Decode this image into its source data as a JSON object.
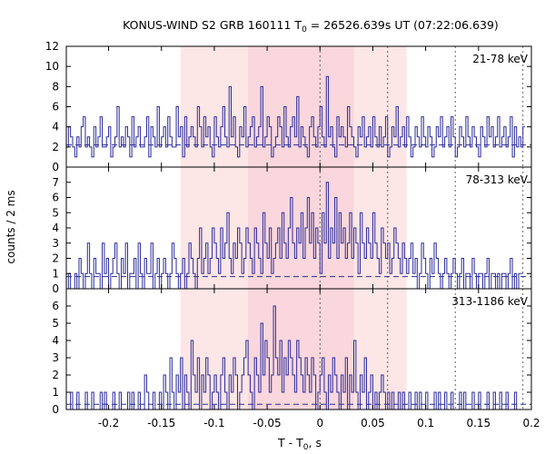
{
  "chart_data": {
    "type": "line",
    "title_prefix": "KONUS-WIND S2 GRB 160111 T",
    "title_sub": "0",
    "title_suffix": " = 26526.639s UT (07:22:06.639)",
    "ylabel": "counts / 2 ms",
    "xlabel_prefix": "T - T",
    "xlabel_sub": "0",
    "xlabel_suffix": ", s",
    "xlim": [
      -0.24,
      0.2
    ],
    "x_ticks": [
      -0.2,
      -0.15,
      -0.1,
      -0.05,
      0,
      0.05,
      0.1,
      0.15,
      0.2
    ],
    "x_tick_labels": [
      "-0.2",
      "-0.15",
      "-0.1",
      "-0.05",
      "0",
      "0.05",
      "0.1",
      "0.15",
      "0.2"
    ],
    "bin_width_s": 0.002,
    "shaded_regions": [
      {
        "x0": -0.132,
        "x1": 0.082,
        "color": "#fce6e6"
      },
      {
        "x0": -0.068,
        "x1": 0.032,
        "color": "#f9d7dc"
      }
    ],
    "dotted_lines_x": [
      0,
      0.064,
      0.128,
      0.192
    ],
    "colors": {
      "histogram": "#2b2b9c",
      "background": "#2b2b9c"
    },
    "panels": [
      {
        "label": "21-78 keV",
        "ylim": [
          0,
          12
        ],
        "y_ticks": [
          0,
          2,
          4,
          6,
          8,
          10,
          12
        ],
        "y_tick_labels": [
          "0",
          "2",
          "4",
          "6",
          "8",
          "10",
          "12"
        ],
        "background_level": 2.2,
        "counts": [
          2,
          4,
          3,
          2,
          1,
          3,
          2,
          4,
          5,
          2,
          3,
          2,
          1,
          4,
          2,
          3,
          5,
          2,
          2,
          3,
          4,
          1,
          2,
          3,
          6,
          2,
          3,
          2,
          4,
          3,
          1,
          5,
          2,
          3,
          4,
          2,
          2,
          3,
          5,
          1,
          4,
          3,
          2,
          6,
          2,
          3,
          4,
          2,
          5,
          3,
          2,
          2,
          6,
          3,
          4,
          1,
          5,
          2,
          3,
          4,
          3,
          2,
          6,
          4,
          2,
          5,
          3,
          4,
          2,
          1,
          5,
          3,
          2,
          4,
          6,
          3,
          2,
          8,
          3,
          5,
          2,
          1,
          4,
          3,
          6,
          2,
          3,
          4,
          5,
          2,
          3,
          4,
          8,
          2,
          3,
          5,
          4,
          1,
          2,
          3,
          5,
          4,
          2,
          6,
          3,
          2,
          4,
          5,
          3,
          7,
          2,
          4,
          3,
          2,
          1,
          4,
          5,
          3,
          2,
          4,
          6,
          3,
          2,
          9,
          3,
          4,
          2,
          1,
          5,
          3,
          4,
          3,
          2,
          6,
          4,
          3,
          2,
          1,
          4,
          3,
          5,
          2,
          3,
          4,
          2,
          5,
          3,
          2,
          4,
          2,
          3,
          5,
          1,
          2,
          4,
          3,
          6,
          2,
          3,
          4,
          2,
          5,
          3,
          1,
          2,
          4,
          3,
          2,
          5,
          3,
          2,
          4,
          3,
          1,
          2,
          4,
          3,
          5,
          2,
          3,
          4,
          2,
          5,
          3,
          1,
          2,
          4,
          3,
          2,
          5,
          3,
          2,
          4,
          3,
          2,
          1,
          4,
          3,
          2,
          5,
          3,
          4,
          2,
          3,
          5,
          2,
          3,
          4,
          2,
          3,
          5,
          1,
          4,
          2,
          3,
          2,
          4
        ]
      },
      {
        "label": "78-313 keV",
        "ylim": [
          0,
          8
        ],
        "y_ticks": [
          0,
          1,
          2,
          3,
          4,
          5,
          6,
          7
        ],
        "y_tick_labels": [
          "0",
          "1",
          "2",
          "3",
          "4",
          "5",
          "6",
          "7"
        ],
        "background_level": 0.8,
        "counts": [
          0,
          1,
          0,
          0,
          1,
          0,
          2,
          1,
          0,
          1,
          3,
          1,
          0,
          2,
          1,
          1,
          0,
          3,
          1,
          2,
          0,
          1,
          2,
          3,
          1,
          0,
          2,
          1,
          3,
          0,
          1,
          1,
          2,
          0,
          3,
          1,
          0,
          2,
          1,
          1,
          3,
          0,
          1,
          2,
          0,
          1,
          2,
          1,
          0,
          1,
          3,
          2,
          1,
          0,
          1,
          2,
          0,
          1,
          3,
          2,
          1,
          0,
          2,
          4,
          1,
          2,
          3,
          1,
          2,
          4,
          3,
          2,
          1,
          4,
          2,
          3,
          5,
          2,
          1,
          3,
          2,
          4,
          3,
          1,
          2,
          4,
          3,
          2,
          1,
          4,
          3,
          2,
          1,
          5,
          3,
          2,
          4,
          1,
          2,
          3,
          4,
          2,
          5,
          3,
          2,
          4,
          6,
          3,
          2,
          4,
          3,
          5,
          2,
          4,
          6,
          3,
          5,
          2,
          4,
          3,
          1,
          5,
          3,
          7,
          2,
          4,
          3,
          6,
          2,
          5,
          3,
          4,
          2,
          3,
          5,
          2,
          4,
          3,
          1,
          5,
          3,
          2,
          4,
          3,
          2,
          5,
          3,
          2,
          1,
          4,
          3,
          2,
          3,
          1,
          2,
          4,
          3,
          2,
          1,
          3,
          2,
          1,
          2,
          3,
          1,
          2,
          0,
          1,
          3,
          2,
          1,
          0,
          2,
          1,
          3,
          2,
          1,
          0,
          1,
          2,
          1,
          0,
          1,
          2,
          1,
          0,
          1,
          2,
          0,
          1,
          1,
          0,
          2,
          1,
          0,
          1,
          1,
          0,
          1,
          2,
          0,
          1,
          1,
          0,
          1,
          0,
          1,
          1,
          0,
          1,
          2,
          0,
          1,
          0,
          1,
          1
        ]
      },
      {
        "label": "313-1186 keV",
        "ylim": [
          0,
          7
        ],
        "y_ticks": [
          0,
          1,
          2,
          3,
          4,
          5,
          6
        ],
        "y_tick_labels": [
          "0",
          "1",
          "2",
          "3",
          "4",
          "5",
          "6"
        ],
        "background_level": 0.3,
        "counts": [
          0,
          0,
          1,
          0,
          0,
          1,
          0,
          0,
          0,
          1,
          0,
          0,
          1,
          0,
          0,
          0,
          1,
          0,
          1,
          0,
          0,
          0,
          1,
          0,
          0,
          1,
          0,
          0,
          0,
          1,
          0,
          1,
          0,
          0,
          1,
          0,
          0,
          2,
          1,
          0,
          0,
          1,
          0,
          0,
          1,
          0,
          2,
          1,
          0,
          3,
          1,
          0,
          2,
          1,
          3,
          0,
          2,
          1,
          0,
          4,
          2,
          1,
          3,
          0,
          2,
          1,
          3,
          2,
          0,
          1,
          2,
          1,
          0,
          2,
          3,
          1,
          0,
          2,
          1,
          3,
          2,
          0,
          1,
          2,
          3,
          4,
          2,
          1,
          0,
          3,
          2,
          1,
          5,
          2,
          4,
          3,
          1,
          2,
          6,
          3,
          2,
          4,
          1,
          3,
          2,
          4,
          3,
          2,
          1,
          4,
          3,
          2,
          1,
          3,
          2,
          1,
          3,
          2,
          0,
          1,
          2,
          3,
          1,
          0,
          2,
          1,
          3,
          2,
          1,
          0,
          2,
          1,
          3,
          0,
          2,
          1,
          4,
          1,
          0,
          2,
          1,
          3,
          0,
          1,
          2,
          0,
          1,
          0,
          1,
          2,
          1,
          0,
          1,
          0,
          1,
          0,
          0,
          1,
          0,
          1,
          0,
          0,
          1,
          0,
          0,
          1,
          0,
          1,
          0,
          0,
          1,
          0,
          0,
          0,
          1,
          0,
          1,
          0,
          0,
          1,
          0,
          0,
          1,
          0,
          0,
          0,
          1,
          0,
          1,
          0,
          0,
          0,
          1,
          0,
          0,
          1,
          0,
          0,
          0,
          1,
          0,
          0,
          1,
          0,
          0,
          1,
          0,
          0,
          1,
          0,
          0,
          0,
          1,
          0,
          0
        ]
      }
    ]
  }
}
